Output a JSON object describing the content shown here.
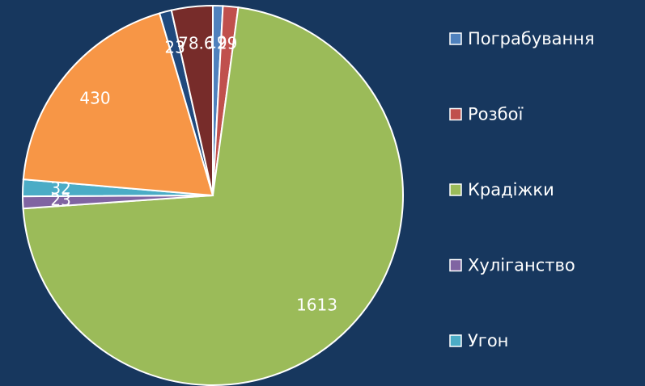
{
  "chart_data": {
    "type": "pie",
    "categories": [
      "Пограбування",
      "Розбої",
      "Крадіжки",
      "Хуліганство",
      "Угон",
      null,
      null,
      null
    ],
    "values": [
      19,
      29,
      1613,
      23,
      32,
      430,
      23,
      78.6
    ],
    "colors": [
      "#4f81bd",
      "#c0504d",
      "#9bbb59",
      "#8064a2",
      "#4bacc6",
      "#f79646",
      "#1f497d",
      "#772c2a"
    ],
    "legend": "right"
  }
}
